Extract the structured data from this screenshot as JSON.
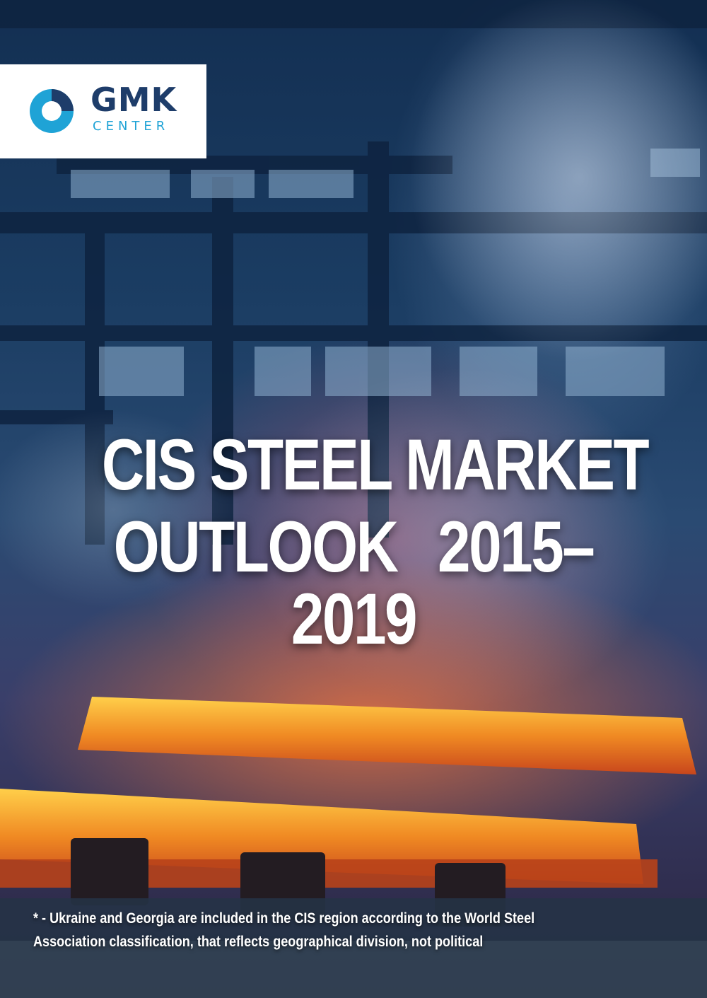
{
  "logo": {
    "name": "GMK",
    "subtitle": "CENTER",
    "colors": {
      "accent": "#1fa3d6",
      "navy": "#1e3d6a"
    }
  },
  "title": {
    "line1": "CIS STEEL MARKET",
    "line2_left": "OUTLOOK",
    "line2_right": "2015–2019"
  },
  "footnote": {
    "line1": "* - Ukraine and Georgia are included in the CIS region according to the World Steel",
    "line2": "Association classification, that reflects geographical division, not political"
  },
  "background": {
    "description_icon": "steel-mill-photo",
    "colors": {
      "sky": "#1b3d63",
      "glow": "#f29a2a",
      "smoke": "#b86b8a"
    }
  }
}
